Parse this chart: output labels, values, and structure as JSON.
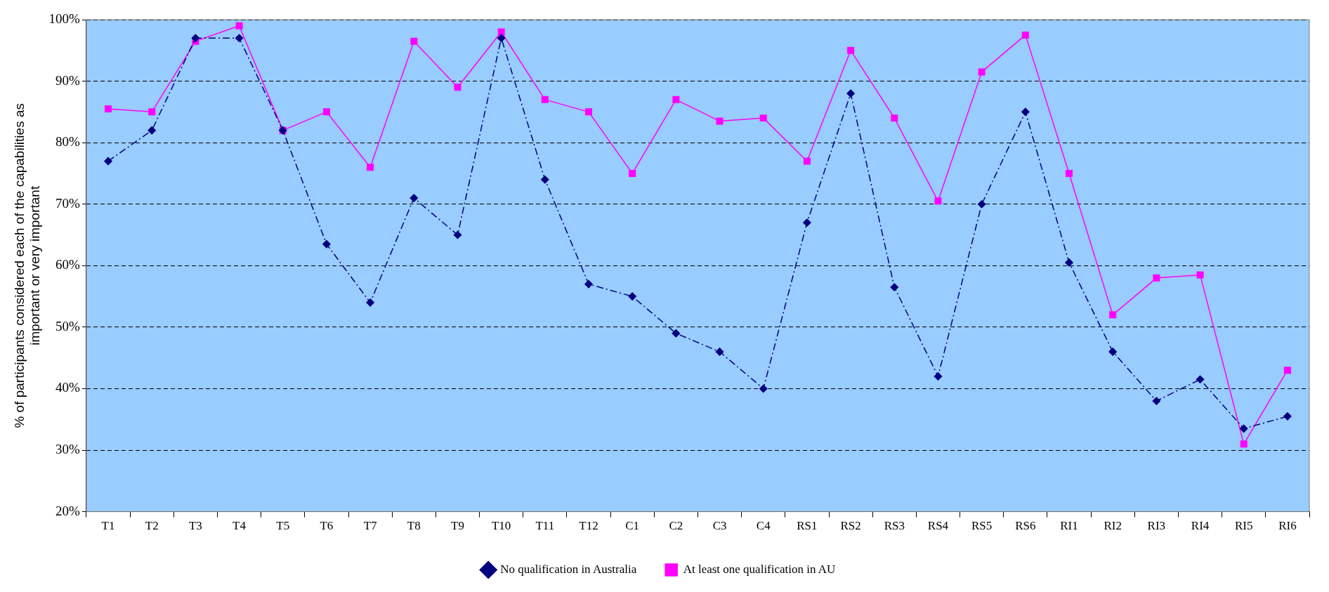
{
  "chart_data": {
    "type": "line",
    "ylabel": "% of participants considered each of the capabilities as important or very important",
    "categories": [
      "T1",
      "T2",
      "T3",
      "T4",
      "T5",
      "T6",
      "T7",
      "T8",
      "T9",
      "T10",
      "T11",
      "T12",
      "C1",
      "C2",
      "C3",
      "C4",
      "RS1",
      "RS2",
      "RS3",
      "RS4",
      "RS5",
      "RS6",
      "RI1",
      "RI2",
      "RI3",
      "RI4",
      "RI5",
      "RI6"
    ],
    "series": [
      {
        "name": "No qualification in Australia",
        "color": "#000080",
        "marker": "diamond",
        "line_style": "dashed",
        "values": [
          77,
          82,
          97,
          97,
          82,
          63.5,
          54,
          71,
          65,
          97,
          74,
          57,
          55,
          49,
          46,
          40,
          67,
          88,
          56.5,
          42,
          70,
          85,
          60.5,
          46,
          38,
          41.5,
          33.5,
          35.5
        ]
      },
      {
        "name": "At least one qualification in AU",
        "color": "#ff00ff",
        "marker": "square",
        "line_style": "solid",
        "values": [
          85.5,
          85,
          96.5,
          99,
          82,
          85,
          76,
          96.5,
          89,
          98,
          87,
          85,
          75,
          87,
          83.5,
          84,
          77,
          95,
          84,
          70.5,
          91.5,
          97.5,
          75,
          52,
          58,
          58.5,
          31,
          43
        ]
      }
    ],
    "ylim": [
      20,
      100
    ],
    "yticks": [
      {
        "value": 20,
        "label": "20%"
      },
      {
        "value": 30,
        "label": "30%"
      },
      {
        "value": 40,
        "label": "40%"
      },
      {
        "value": 50,
        "label": "50%"
      },
      {
        "value": 60,
        "label": "60%"
      },
      {
        "value": 70,
        "label": "70%"
      },
      {
        "value": 80,
        "label": "80%"
      },
      {
        "value": 90,
        "label": "90%"
      },
      {
        "value": 100,
        "label": "100%"
      }
    ],
    "grid": "y",
    "legend": "bottom"
  }
}
